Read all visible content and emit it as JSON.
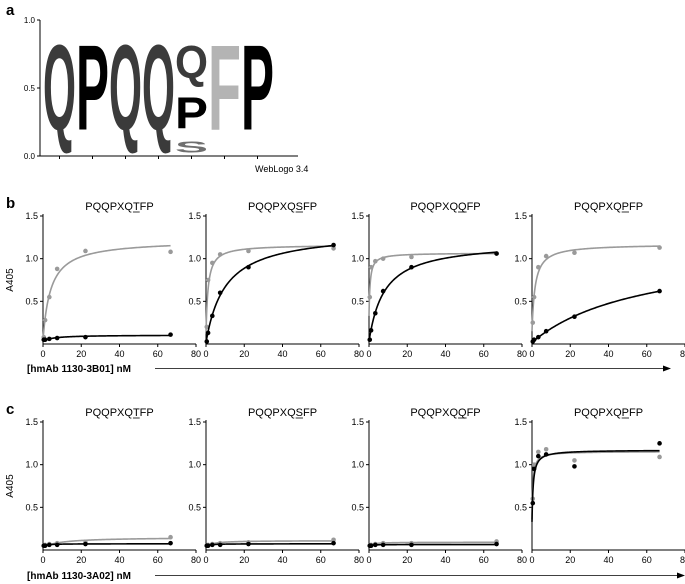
{
  "panel_labels": {
    "a": "a",
    "b": "b",
    "c": "c"
  },
  "logo": {
    "credit": "WebLogo 3.4",
    "y_ticks": [
      "0.0",
      "0.5",
      "1.0"
    ],
    "colors": {
      "Q": "#3b3b3b",
      "P": "#000000",
      "S": "#6f6f6f",
      "F": "#b4b4b4"
    },
    "positions": [
      {
        "letters": [
          {
            "char": "Q",
            "height": 1.0
          }
        ]
      },
      {
        "letters": [
          {
            "char": "P",
            "height": 1.0
          }
        ]
      },
      {
        "letters": [
          {
            "char": "Q",
            "height": 1.0
          }
        ]
      },
      {
        "letters": [
          {
            "char": "Q",
            "height": 1.0
          }
        ]
      },
      {
        "letters": [
          {
            "char": "S",
            "height": 0.13
          },
          {
            "char": "P",
            "height": 0.37
          },
          {
            "char": "Q",
            "height": 0.38
          }
        ]
      },
      {
        "letters": [
          {
            "char": "F",
            "height": 1.0
          }
        ]
      },
      {
        "letters": [
          {
            "char": "P",
            "height": 1.0
          }
        ]
      }
    ]
  },
  "row_b_label": "[hmAb 1130-3B01] nM",
  "row_c_label": "[hmAb 1130-3A02] nM",
  "chart_data": [
    {
      "type": "scatter",
      "panel": "b",
      "title": "PQQPXQTFP",
      "ylabel": "A405",
      "xlim": [
        0,
        80
      ],
      "ylim": [
        0,
        1.5
      ],
      "x_ticks": [
        "0",
        "20",
        "40",
        "60",
        "80"
      ],
      "y_ticks": [
        "0.5",
        "1.0",
        "1.5"
      ],
      "series": [
        {
          "color": "#9a9a9a",
          "x": [
            0.4,
            1.1,
            3.3,
            7.4,
            22.2,
            66.7
          ],
          "y": [
            0.08,
            0.28,
            0.55,
            0.88,
            1.09,
            1.08
          ]
        },
        {
          "color": "#000000",
          "x": [
            0.4,
            1.1,
            3.3,
            7.4,
            22.2,
            66.7
          ],
          "y": [
            0.05,
            0.05,
            0.06,
            0.07,
            0.08,
            0.11
          ]
        }
      ]
    },
    {
      "type": "scatter",
      "panel": "b",
      "title": "PQQPXQSFP",
      "xlim": [
        0,
        80
      ],
      "ylim": [
        0,
        1.5
      ],
      "x_ticks": [
        "0",
        "20",
        "40",
        "60",
        "80"
      ],
      "y_ticks": [
        "0.5",
        "1.0",
        "1.5"
      ],
      "series": [
        {
          "color": "#9a9a9a",
          "x": [
            0.4,
            1.1,
            3.3,
            7.4,
            22.2,
            66.7
          ],
          "y": [
            0.2,
            0.75,
            0.95,
            1.05,
            1.09,
            1.12
          ]
        },
        {
          "color": "#000000",
          "x": [
            0.4,
            1.1,
            3.3,
            7.4,
            22.2,
            66.7
          ],
          "y": [
            0.03,
            0.13,
            0.33,
            0.6,
            0.9,
            1.16
          ]
        }
      ]
    },
    {
      "type": "scatter",
      "panel": "b",
      "title": "PQQPXQQFP",
      "xlim": [
        0,
        80
      ],
      "ylim": [
        0,
        1.5
      ],
      "x_ticks": [
        "0",
        "20",
        "40",
        "60",
        "80"
      ],
      "y_ticks": [
        "0.5",
        "1.0",
        "1.5"
      ],
      "series": [
        {
          "color": "#9a9a9a",
          "x": [
            0.4,
            1.1,
            3.3,
            7.4,
            22.2,
            66.7
          ],
          "y": [
            0.55,
            0.9,
            0.97,
            1.0,
            1.02,
            1.06
          ]
        },
        {
          "color": "#000000",
          "x": [
            0.4,
            1.1,
            3.3,
            7.4,
            22.2,
            66.7
          ],
          "y": [
            0.05,
            0.16,
            0.36,
            0.62,
            0.9,
            1.06
          ]
        }
      ]
    },
    {
      "type": "scatter",
      "panel": "b",
      "title": "PQQPXQPFP",
      "xlim": [
        0,
        80
      ],
      "ylim": [
        0,
        1.5
      ],
      "x_ticks": [
        "0",
        "20",
        "40",
        "60",
        "80"
      ],
      "y_ticks": [
        "0.5",
        "1.0",
        "1.5"
      ],
      "series": [
        {
          "color": "#9a9a9a",
          "x": [
            0.4,
            1.1,
            3.3,
            7.4,
            22.2,
            66.7
          ],
          "y": [
            0.25,
            0.55,
            0.9,
            1.03,
            1.07,
            1.13
          ]
        },
        {
          "color": "#000000",
          "x": [
            0.4,
            1.1,
            3.3,
            7.4,
            22.2,
            66.7
          ],
          "y": [
            0.03,
            0.05,
            0.08,
            0.15,
            0.32,
            0.62
          ]
        }
      ]
    },
    {
      "type": "scatter",
      "panel": "c",
      "title": "PQQPXQTFP",
      "ylabel": "A405",
      "xlim": [
        0,
        80
      ],
      "ylim": [
        0,
        1.5
      ],
      "x_ticks": [
        "0",
        "20",
        "40",
        "60",
        "80"
      ],
      "y_ticks": [
        "0.5",
        "1.0",
        "1.5"
      ],
      "series": [
        {
          "color": "#9a9a9a",
          "x": [
            0.4,
            1.1,
            3.3,
            7.4,
            22.2,
            66.7
          ],
          "y": [
            0.05,
            0.06,
            0.07,
            0.08,
            0.09,
            0.15
          ]
        },
        {
          "color": "#000000",
          "x": [
            0.4,
            1.1,
            3.3,
            7.4,
            22.2,
            66.7
          ],
          "y": [
            0.05,
            0.05,
            0.06,
            0.06,
            0.07,
            0.08
          ]
        }
      ]
    },
    {
      "type": "scatter",
      "panel": "c",
      "title": "PQQPXQSFP",
      "xlim": [
        0,
        80
      ],
      "ylim": [
        0,
        1.5
      ],
      "x_ticks": [
        "0",
        "20",
        "40",
        "60",
        "80"
      ],
      "y_ticks": [
        "0.5",
        "1.0",
        "1.5"
      ],
      "series": [
        {
          "color": "#9a9a9a",
          "x": [
            0.4,
            1.1,
            3.3,
            7.4,
            22.2,
            66.7
          ],
          "y": [
            0.05,
            0.06,
            0.07,
            0.08,
            0.09,
            0.12
          ]
        },
        {
          "color": "#000000",
          "x": [
            0.4,
            1.1,
            3.3,
            7.4,
            22.2,
            66.7
          ],
          "y": [
            0.05,
            0.05,
            0.06,
            0.06,
            0.07,
            0.08
          ]
        }
      ]
    },
    {
      "type": "scatter",
      "panel": "c",
      "title": "PQQPXQQFP",
      "xlim": [
        0,
        80
      ],
      "ylim": [
        0,
        1.5
      ],
      "x_ticks": [
        "0",
        "20",
        "40",
        "60",
        "80"
      ],
      "y_ticks": [
        "0.5",
        "1.0",
        "1.5"
      ],
      "series": [
        {
          "color": "#9a9a9a",
          "x": [
            0.4,
            1.1,
            3.3,
            7.4,
            22.2,
            66.7
          ],
          "y": [
            0.05,
            0.06,
            0.07,
            0.08,
            0.08,
            0.1
          ]
        },
        {
          "color": "#000000",
          "x": [
            0.4,
            1.1,
            3.3,
            7.4,
            22.2,
            66.7
          ],
          "y": [
            0.05,
            0.05,
            0.06,
            0.06,
            0.06,
            0.07
          ]
        }
      ]
    },
    {
      "type": "scatter",
      "panel": "c",
      "title": "PQQPXQPFP",
      "xlim": [
        0,
        80
      ],
      "ylim": [
        0,
        1.5
      ],
      "x_ticks": [
        "0",
        "20",
        "40",
        "60",
        "80"
      ],
      "y_ticks": [
        "0.5",
        "1.0",
        "1.5"
      ],
      "series": [
        {
          "color": "#9a9a9a",
          "x": [
            0.4,
            1.1,
            3.3,
            7.4,
            22.2,
            66.7
          ],
          "y": [
            0.6,
            1.0,
            1.15,
            1.18,
            1.05,
            1.09
          ]
        },
        {
          "color": "#000000",
          "x": [
            0.4,
            1.1,
            3.3,
            7.4,
            22.2,
            66.7
          ],
          "y": [
            0.55,
            0.95,
            1.1,
            1.12,
            0.98,
            1.25
          ]
        }
      ]
    }
  ]
}
